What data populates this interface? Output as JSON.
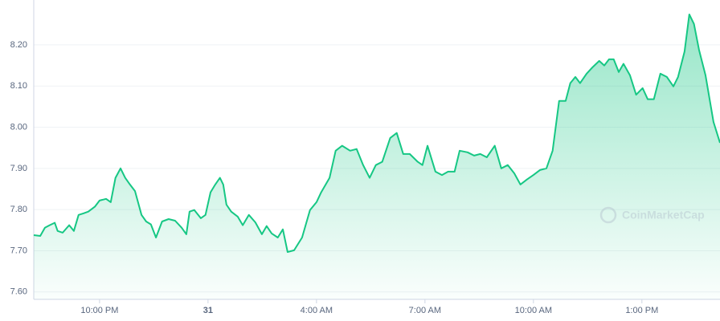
{
  "chart_data": {
    "type": "line",
    "color": "#16c784",
    "grid": true,
    "watermark": "CoinMarketCap",
    "x": [
      -1.82,
      -1.64,
      -1.51,
      -1.38,
      -1.24,
      -1.16,
      -1.02,
      -0.84,
      -0.71,
      -0.58,
      -0.44,
      -0.31,
      -0.13,
      0,
      0.18,
      0.31,
      0.44,
      0.58,
      0.71,
      0.84,
      0.98,
      1.16,
      1.29,
      1.42,
      1.56,
      1.73,
      1.91,
      2.09,
      2.27,
      2.4,
      2.49,
      2.62,
      2.8,
      2.93,
      3.07,
      3.2,
      3.33,
      3.42,
      3.51,
      3.64,
      3.82,
      3.96,
      4.13,
      4.31,
      4.49,
      4.62,
      4.76,
      4.93,
      5.07,
      5.2,
      5.38,
      5.6,
      5.82,
      6,
      6.13,
      6.36,
      6.53,
      6.71,
      6.93,
      7.11,
      7.29,
      7.47,
      7.64,
      7.82,
      8.04,
      8.22,
      8.4,
      8.58,
      8.8,
      8.93,
      9.07,
      9.29,
      9.47,
      9.64,
      9.82,
      9.96,
      10.18,
      10.36,
      10.53,
      10.71,
      10.93,
      11.11,
      11.29,
      11.47,
      11.64,
      11.82,
      12,
      12.18,
      12.36,
      12.53,
      12.71,
      12.89,
      13.02,
      13.16,
      13.29,
      13.47,
      13.64,
      13.82,
      13.96,
      14.09,
      14.22,
      14.36,
      14.49,
      14.67,
      14.84,
      15.02,
      15.16,
      15.33,
      15.51,
      15.69,
      15.87,
      16,
      16.18,
      16.31,
      16.44,
      16.58,
      16.76,
      16.98,
      17.16
    ],
    "values": [
      7.738,
      7.736,
      7.756,
      7.762,
      7.768,
      7.748,
      7.744,
      7.762,
      7.748,
      7.787,
      7.791,
      7.795,
      7.807,
      7.822,
      7.826,
      7.818,
      7.877,
      7.9,
      7.877,
      7.861,
      7.845,
      7.787,
      7.771,
      7.764,
      7.732,
      7.771,
      7.777,
      7.773,
      7.756,
      7.74,
      7.795,
      7.799,
      7.779,
      7.787,
      7.842,
      7.861,
      7.877,
      7.861,
      7.812,
      7.795,
      7.783,
      7.762,
      7.787,
      7.769,
      7.74,
      7.76,
      7.742,
      7.732,
      7.752,
      7.697,
      7.701,
      7.732,
      7.799,
      7.818,
      7.842,
      7.877,
      7.943,
      7.955,
      7.943,
      7.947,
      7.908,
      7.877,
      7.908,
      7.916,
      7.974,
      7.986,
      7.935,
      7.935,
      7.916,
      7.908,
      7.955,
      7.892,
      7.884,
      7.892,
      7.892,
      7.943,
      7.939,
      7.931,
      7.935,
      7.927,
      7.955,
      7.9,
      7.908,
      7.888,
      7.861,
      7.873,
      7.884,
      7.896,
      7.9,
      7.943,
      8.064,
      8.064,
      8.107,
      8.122,
      8.107,
      8.13,
      8.146,
      8.161,
      8.15,
      8.165,
      8.165,
      8.134,
      8.154,
      8.126,
      8.079,
      8.095,
      8.068,
      8.068,
      8.13,
      8.122,
      8.099,
      8.122,
      8.184,
      8.274,
      8.251,
      8.188,
      8.126,
      8.013,
      7.962
    ],
    "xlim": [
      -1.82,
      17.16
    ],
    "xticks": [
      {
        "value": 0,
        "label": "10:00 PM"
      },
      {
        "value": 3,
        "label": "31"
      },
      {
        "value": 6,
        "label": "4:00 AM"
      },
      {
        "value": 9,
        "label": "7:00 AM"
      },
      {
        "value": 12,
        "label": "10:00 AM"
      },
      {
        "value": 15,
        "label": "1:00 PM"
      }
    ],
    "ylim": [
      7.582,
      8.309
    ],
    "yticks": [
      {
        "value": 7.6,
        "label": "7.60"
      },
      {
        "value": 7.7,
        "label": "7.70"
      },
      {
        "value": 7.8,
        "label": "7.80"
      },
      {
        "value": 7.9,
        "label": "7.90"
      },
      {
        "value": 8.0,
        "label": "8.00"
      },
      {
        "value": 8.1,
        "label": "8.10"
      },
      {
        "value": 8.2,
        "label": "8.20"
      }
    ]
  }
}
